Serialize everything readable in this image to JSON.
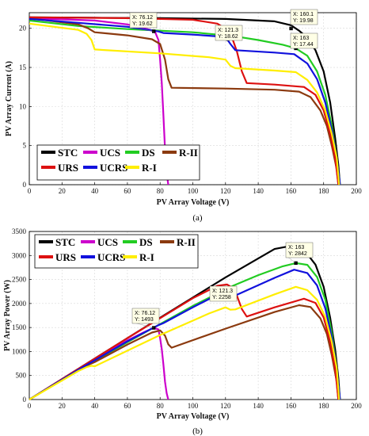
{
  "chart_data": [
    {
      "type": "line",
      "caption": "(a)",
      "xlabel": "PV Array Voltage (V)",
      "ylabel": "PV Array Current (A)",
      "xlim": [
        0,
        200
      ],
      "ylim": [
        0,
        22
      ],
      "xticks": [
        0,
        20,
        40,
        60,
        80,
        100,
        120,
        140,
        160,
        180,
        200
      ],
      "yticks": [
        0,
        5,
        10,
        15,
        20
      ],
      "grid": true,
      "legend_position": "bottom-left",
      "series": [
        {
          "name": "STC",
          "color": "#000000",
          "points": [
            [
              0,
              21.4
            ],
            [
              40,
              21.35
            ],
            [
              80,
              21.3
            ],
            [
              120,
              21.2
            ],
            [
              150,
              20.9
            ],
            [
              160,
              20.4
            ],
            [
              165,
              19.7
            ],
            [
              170,
              18.8
            ],
            [
              175,
              17.2
            ],
            [
              180,
              14.5
            ],
            [
              184,
              10.5
            ],
            [
              187,
              6
            ],
            [
              189,
              2.5
            ],
            [
              190,
              0
            ]
          ]
        },
        {
          "name": "UCS",
          "color": "#cc00cc",
          "points": [
            [
              0,
              21.3
            ],
            [
              40,
              21.0
            ],
            [
              60,
              20.5
            ],
            [
              70,
              20.0
            ],
            [
              74,
              19.8
            ],
            [
              77,
              19.5
            ],
            [
              79,
              18.5
            ],
            [
              80,
              16.0
            ],
            [
              81,
              13.0
            ],
            [
              82,
              9.0
            ],
            [
              83,
              4.5
            ],
            [
              84,
              1.5
            ],
            [
              85,
              0
            ]
          ]
        },
        {
          "name": "DS",
          "color": "#22cc22",
          "points": [
            [
              0,
              21.0
            ],
            [
              30,
              20.3
            ],
            [
              60,
              19.9
            ],
            [
              100,
              19.5
            ],
            [
              125,
              19.0
            ],
            [
              140,
              18.5
            ],
            [
              155,
              17.9
            ],
            [
              163,
              17.44
            ],
            [
              170,
              16.5
            ],
            [
              176,
              14.5
            ],
            [
              181,
              11.5
            ],
            [
              185,
              7.5
            ],
            [
              188,
              3.5
            ],
            [
              190,
              0
            ]
          ]
        },
        {
          "name": "R-II",
          "color": "#8b3a0f",
          "points": [
            [
              0,
              21.3
            ],
            [
              30,
              20.5
            ],
            [
              36,
              20.0
            ],
            [
              40,
              19.5
            ],
            [
              60,
              19.1
            ],
            [
              75,
              18.6
            ],
            [
              80,
              18.0
            ],
            [
              83,
              16.0
            ],
            [
              85,
              13.5
            ],
            [
              87,
              12.4
            ],
            [
              120,
              12.3
            ],
            [
              150,
              12.15
            ],
            [
              165,
              11.9
            ],
            [
              172,
              11.2
            ],
            [
              178,
              9.5
            ],
            [
              182,
              7.5
            ],
            [
              185,
              5.0
            ],
            [
              188,
              2.0
            ],
            [
              189,
              0
            ]
          ]
        },
        {
          "name": "URS",
          "color": "#dd1111",
          "points": [
            [
              0,
              21.4
            ],
            [
              60,
              21.3
            ],
            [
              100,
              21.1
            ],
            [
              115,
              20.6
            ],
            [
              121,
              19.8
            ],
            [
              124,
              18.8
            ],
            [
              127,
              17.0
            ],
            [
              130,
              14.5
            ],
            [
              133,
              13.0
            ],
            [
              150,
              12.8
            ],
            [
              168,
              12.5
            ],
            [
              175,
              11.5
            ],
            [
              180,
              9.5
            ],
            [
              184,
              6.5
            ],
            [
              187,
              3.5
            ],
            [
              189,
              0
            ]
          ]
        },
        {
          "name": "UCRS",
          "color": "#1111dd",
          "points": [
            [
              0,
              21.2
            ],
            [
              30,
              20.7
            ],
            [
              60,
              20.2
            ],
            [
              76,
              19.7
            ],
            [
              79,
              19.6
            ],
            [
              82,
              19.4
            ],
            [
              100,
              19.2
            ],
            [
              120,
              18.9
            ],
            [
              123,
              18.0
            ],
            [
              126,
              17.2
            ],
            [
              150,
              16.9
            ],
            [
              162,
              16.7
            ],
            [
              170,
              15.5
            ],
            [
              176,
              13.5
            ],
            [
              181,
              10.5
            ],
            [
              185,
              7.0
            ],
            [
              188,
              3.5
            ],
            [
              190,
              0
            ]
          ]
        },
        {
          "name": "R-I",
          "color": "#ffee00",
          "points": [
            [
              0,
              20.6
            ],
            [
              30,
              19.8
            ],
            [
              35,
              19.3
            ],
            [
              38,
              18.5
            ],
            [
              40,
              17.3
            ],
            [
              80,
              16.8
            ],
            [
              110,
              16.3
            ],
            [
              120,
              16.0
            ],
            [
              123,
              15.2
            ],
            [
              126,
              14.9
            ],
            [
              150,
              14.6
            ],
            [
              163,
              14.4
            ],
            [
              170,
              13.4
            ],
            [
              176,
              11.8
            ],
            [
              181,
              9.5
            ],
            [
              185,
              6.5
            ],
            [
              188,
              3.5
            ],
            [
              189.5,
              0
            ]
          ]
        }
      ],
      "annotations": [
        {
          "x_text": "X: 76.12",
          "y_text": "Y: 19.62",
          "x": 76.12,
          "y": 19.62
        },
        {
          "x_text": "X: 121.3",
          "y_text": "Y: 18.62",
          "x": 121.3,
          "y": 18.62
        },
        {
          "x_text": "X: 160.1",
          "y_text": "Y: 19.98",
          "x": 160.1,
          "y": 19.98
        },
        {
          "x_text": "X: 163",
          "y_text": "Y: 17.44",
          "x": 163,
          "y": 17.44
        }
      ]
    },
    {
      "type": "line",
      "caption": "(b)",
      "xlabel": "PV Array Voltage (V)",
      "ylabel": "PV Array Power (W)",
      "xlim": [
        0,
        200
      ],
      "ylim": [
        0,
        3500
      ],
      "xticks": [
        0,
        20,
        40,
        60,
        80,
        100,
        120,
        140,
        160,
        180,
        200
      ],
      "yticks": [
        0,
        500,
        1000,
        1500,
        2000,
        2500,
        3000,
        3500
      ],
      "grid": true,
      "legend_position": "top-left",
      "series": [
        {
          "name": "STC",
          "color": "#000000",
          "points": [
            [
              0,
              0
            ],
            [
              40,
              854
            ],
            [
              80,
              1704
            ],
            [
              120,
              2544
            ],
            [
              150,
              3135
            ],
            [
              160,
              3200
            ],
            [
              165,
              3160
            ],
            [
              170,
              3030
            ],
            [
              175,
              2810
            ],
            [
              180,
              2350
            ],
            [
              184,
              1700
            ],
            [
              187,
              1050
            ],
            [
              189,
              450
            ],
            [
              190,
              0
            ]
          ]
        },
        {
          "name": "UCS",
          "color": "#cc00cc",
          "points": [
            [
              0,
              0
            ],
            [
              40,
              840
            ],
            [
              60,
              1230
            ],
            [
              70,
              1400
            ],
            [
              76,
              1493
            ],
            [
              79,
              1460
            ],
            [
              80,
              1280
            ],
            [
              81,
              1050
            ],
            [
              82,
              740
            ],
            [
              83,
              370
            ],
            [
              84,
              130
            ],
            [
              85,
              0
            ]
          ]
        },
        {
          "name": "DS",
          "color": "#22cc22",
          "points": [
            [
              0,
              0
            ],
            [
              30,
              609
            ],
            [
              60,
              1194
            ],
            [
              100,
              1950
            ],
            [
              125,
              2375
            ],
            [
              140,
              2590
            ],
            [
              155,
              2775
            ],
            [
              163,
              2842
            ],
            [
              170,
              2805
            ],
            [
              176,
              2552
            ],
            [
              181,
              2080
            ],
            [
              185,
              1390
            ],
            [
              188,
              660
            ],
            [
              190,
              0
            ]
          ]
        },
        {
          "name": "R-II",
          "color": "#8b3a0f",
          "points": [
            [
              0,
              0
            ],
            [
              30,
              615
            ],
            [
              36,
              720
            ],
            [
              40,
              780
            ],
            [
              60,
              1146
            ],
            [
              75,
              1395
            ],
            [
              80,
              1440
            ],
            [
              83,
              1330
            ],
            [
              85,
              1150
            ],
            [
              87,
              1080
            ],
            [
              120,
              1476
            ],
            [
              150,
              1823
            ],
            [
              165,
              1964
            ],
            [
              172,
              1926
            ],
            [
              178,
              1690
            ],
            [
              182,
              1365
            ],
            [
              185,
              925
            ],
            [
              188,
              376
            ],
            [
              189,
              0
            ]
          ]
        },
        {
          "name": "URS",
          "color": "#dd1111",
          "points": [
            [
              0,
              0
            ],
            [
              60,
              1278
            ],
            [
              100,
              2110
            ],
            [
              115,
              2369
            ],
            [
              121,
              2396
            ],
            [
              124,
              2331
            ],
            [
              127,
              2159
            ],
            [
              130,
              1885
            ],
            [
              133,
              1729
            ],
            [
              150,
              1920
            ],
            [
              168,
              2100
            ],
            [
              175,
              2012
            ],
            [
              180,
              1710
            ],
            [
              184,
              1196
            ],
            [
              187,
              655
            ],
            [
              189,
              0
            ]
          ]
        },
        {
          "name": "UCRS",
          "color": "#1111dd",
          "points": [
            [
              0,
              0
            ],
            [
              30,
              621
            ],
            [
              60,
              1212
            ],
            [
              76,
              1497
            ],
            [
              79,
              1548
            ],
            [
              82,
              1591
            ],
            [
              100,
              1920
            ],
            [
              120,
              2268
            ],
            [
              123,
              2214
            ],
            [
              126,
              2167
            ],
            [
              150,
              2535
            ],
            [
              162,
              2705
            ],
            [
              170,
              2635
            ],
            [
              176,
              2376
            ],
            [
              181,
              1900
            ],
            [
              185,
              1295
            ],
            [
              188,
              658
            ],
            [
              190,
              0
            ]
          ]
        },
        {
          "name": "R-I",
          "color": "#ffee00",
          "points": [
            [
              0,
              0
            ],
            [
              30,
              594
            ],
            [
              35,
              675
            ],
            [
              38,
              703
            ],
            [
              40,
              692
            ],
            [
              80,
              1344
            ],
            [
              110,
              1793
            ],
            [
              120,
              1920
            ],
            [
              123,
              1870
            ],
            [
              126,
              1877
            ],
            [
              150,
              2190
            ],
            [
              163,
              2347
            ],
            [
              170,
              2278
            ],
            [
              176,
              2077
            ],
            [
              181,
              1720
            ],
            [
              185,
              1203
            ],
            [
              188,
              658
            ],
            [
              189.5,
              0
            ]
          ]
        }
      ],
      "annotations": [
        {
          "x_text": "X: 76.12",
          "y_text": "Y: 1493",
          "x": 76.12,
          "y": 1493
        },
        {
          "x_text": "X: 121.3",
          "y_text": "Y: 2258",
          "x": 121.3,
          "y": 2258
        },
        {
          "x_text": "X: 163",
          "y_text": "Y: 2842",
          "x": 163,
          "y": 2842
        }
      ]
    }
  ]
}
